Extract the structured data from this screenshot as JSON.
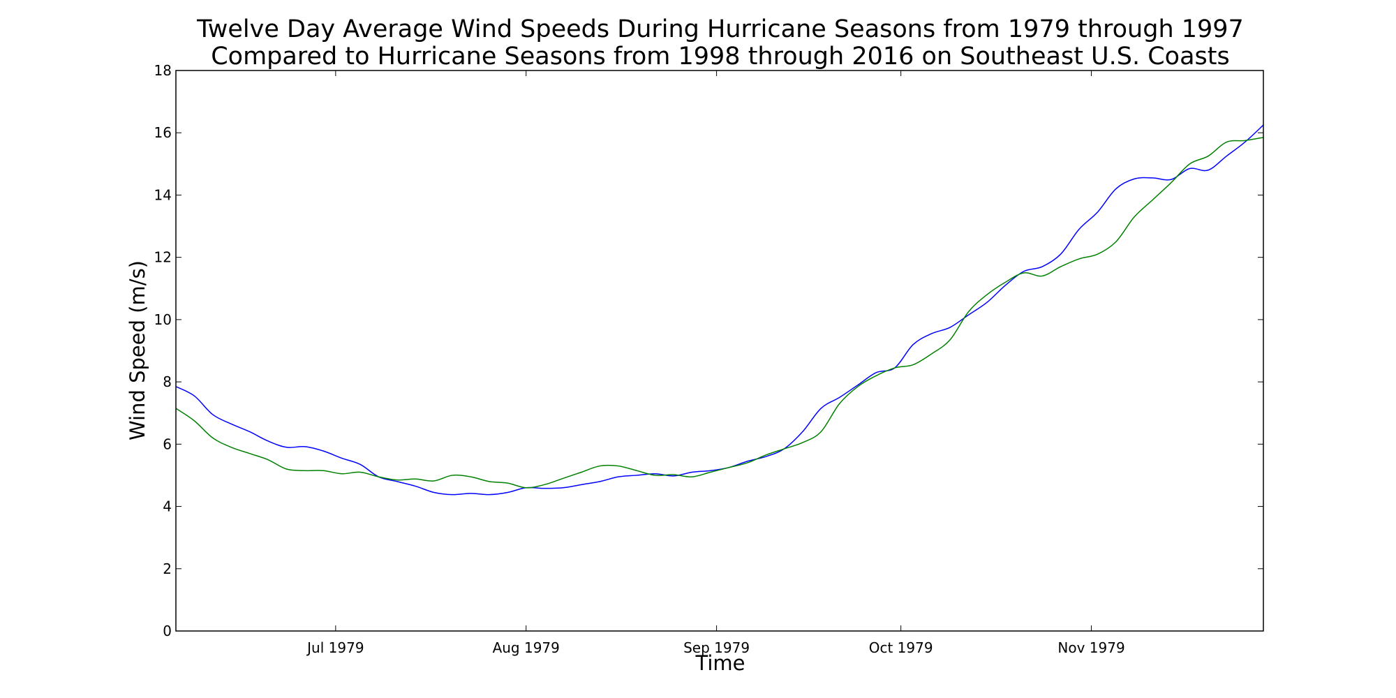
{
  "chart_data": {
    "type": "line",
    "title": "Twelve Day Average Wind Speeds During Hurricane Seasons from 1979 through 1997",
    "subtitle": "Compared to Hurricane Seasons from 1998 through 2016 on Southeast U.S. Coasts",
    "xlabel": "Time",
    "ylabel": "Wind Speed (m/s)",
    "xlim": [
      "1979-06-05",
      "1979-11-29"
    ],
    "ylim": [
      0,
      18
    ],
    "y_ticks": [
      0,
      2,
      4,
      6,
      8,
      10,
      12,
      14,
      16,
      18
    ],
    "x_ticks": [
      {
        "date": "1979-07-01",
        "label": "Jul 1979"
      },
      {
        "date": "1979-08-01",
        "label": "Aug 1979"
      },
      {
        "date": "1979-09-01",
        "label": "Sep 1979"
      },
      {
        "date": "1979-10-01",
        "label": "Oct 1979"
      },
      {
        "date": "1979-11-01",
        "label": "Nov 1979"
      }
    ],
    "grid": false,
    "legend": "none",
    "series": [
      {
        "color": "#0000ff",
        "points": [
          [
            "1979-06-05",
            7.85
          ],
          [
            "1979-06-08",
            7.55
          ],
          [
            "1979-06-11",
            6.95
          ],
          [
            "1979-06-14",
            6.65
          ],
          [
            "1979-06-17",
            6.4
          ],
          [
            "1979-06-20",
            6.1
          ],
          [
            "1979-06-23",
            5.9
          ],
          [
            "1979-06-26",
            5.92
          ],
          [
            "1979-06-29",
            5.78
          ],
          [
            "1979-07-02",
            5.55
          ],
          [
            "1979-07-05",
            5.35
          ],
          [
            "1979-07-08",
            4.95
          ],
          [
            "1979-07-11",
            4.8
          ],
          [
            "1979-07-14",
            4.65
          ],
          [
            "1979-07-17",
            4.45
          ],
          [
            "1979-07-20",
            4.38
          ],
          [
            "1979-07-23",
            4.42
          ],
          [
            "1979-07-26",
            4.38
          ],
          [
            "1979-07-29",
            4.45
          ],
          [
            "1979-08-01",
            4.6
          ],
          [
            "1979-08-04",
            4.58
          ],
          [
            "1979-08-07",
            4.6
          ],
          [
            "1979-08-10",
            4.7
          ],
          [
            "1979-08-13",
            4.8
          ],
          [
            "1979-08-16",
            4.95
          ],
          [
            "1979-08-19",
            5.0
          ],
          [
            "1979-08-22",
            5.05
          ],
          [
            "1979-08-25",
            4.98
          ],
          [
            "1979-08-28",
            5.1
          ],
          [
            "1979-08-31",
            5.15
          ],
          [
            "1979-09-03",
            5.25
          ],
          [
            "1979-09-06",
            5.45
          ],
          [
            "1979-09-09",
            5.6
          ],
          [
            "1979-09-12",
            5.85
          ],
          [
            "1979-09-15",
            6.4
          ],
          [
            "1979-09-18",
            7.15
          ],
          [
            "1979-09-21",
            7.5
          ],
          [
            "1979-09-24",
            7.9
          ],
          [
            "1979-09-27",
            8.3
          ],
          [
            "1979-09-30",
            8.45
          ],
          [
            "1979-10-03",
            9.2
          ],
          [
            "1979-10-06",
            9.55
          ],
          [
            "1979-10-09",
            9.75
          ],
          [
            "1979-10-12",
            10.15
          ],
          [
            "1979-10-15",
            10.55
          ],
          [
            "1979-10-18",
            11.1
          ],
          [
            "1979-10-21",
            11.55
          ],
          [
            "1979-10-24",
            11.7
          ],
          [
            "1979-10-27",
            12.1
          ],
          [
            "1979-10-30",
            12.9
          ],
          [
            "1979-11-02",
            13.45
          ],
          [
            "1979-11-05",
            14.2
          ],
          [
            "1979-11-08",
            14.52
          ],
          [
            "1979-11-11",
            14.55
          ],
          [
            "1979-11-14",
            14.5
          ],
          [
            "1979-11-17",
            14.85
          ],
          [
            "1979-11-20",
            14.8
          ],
          [
            "1979-11-23",
            15.25
          ],
          [
            "1979-11-26",
            15.7
          ],
          [
            "1979-11-29",
            16.25
          ]
        ]
      },
      {
        "color": "#008000",
        "points": [
          [
            "1979-06-05",
            7.15
          ],
          [
            "1979-06-08",
            6.75
          ],
          [
            "1979-06-11",
            6.2
          ],
          [
            "1979-06-14",
            5.9
          ],
          [
            "1979-06-17",
            5.7
          ],
          [
            "1979-06-20",
            5.5
          ],
          [
            "1979-06-23",
            5.2
          ],
          [
            "1979-06-26",
            5.15
          ],
          [
            "1979-06-29",
            5.15
          ],
          [
            "1979-07-02",
            5.05
          ],
          [
            "1979-07-05",
            5.1
          ],
          [
            "1979-07-08",
            4.95
          ],
          [
            "1979-07-11",
            4.85
          ],
          [
            "1979-07-14",
            4.88
          ],
          [
            "1979-07-17",
            4.82
          ],
          [
            "1979-07-20",
            5.0
          ],
          [
            "1979-07-23",
            4.95
          ],
          [
            "1979-07-26",
            4.8
          ],
          [
            "1979-07-29",
            4.75
          ],
          [
            "1979-08-01",
            4.6
          ],
          [
            "1979-08-04",
            4.7
          ],
          [
            "1979-08-07",
            4.9
          ],
          [
            "1979-08-10",
            5.1
          ],
          [
            "1979-08-13",
            5.3
          ],
          [
            "1979-08-16",
            5.3
          ],
          [
            "1979-08-19",
            5.15
          ],
          [
            "1979-08-22",
            5.0
          ],
          [
            "1979-08-25",
            5.02
          ],
          [
            "1979-08-28",
            4.95
          ],
          [
            "1979-08-31",
            5.1
          ],
          [
            "1979-09-03",
            5.25
          ],
          [
            "1979-09-06",
            5.4
          ],
          [
            "1979-09-09",
            5.65
          ],
          [
            "1979-09-12",
            5.85
          ],
          [
            "1979-09-15",
            6.05
          ],
          [
            "1979-09-18",
            6.4
          ],
          [
            "1979-09-21",
            7.3
          ],
          [
            "1979-09-24",
            7.85
          ],
          [
            "1979-09-27",
            8.2
          ],
          [
            "1979-09-30",
            8.45
          ],
          [
            "1979-10-03",
            8.55
          ],
          [
            "1979-10-06",
            8.9
          ],
          [
            "1979-10-09",
            9.35
          ],
          [
            "1979-10-12",
            10.25
          ],
          [
            "1979-10-15",
            10.8
          ],
          [
            "1979-10-18",
            11.2
          ],
          [
            "1979-10-21",
            11.5
          ],
          [
            "1979-10-24",
            11.4
          ],
          [
            "1979-10-27",
            11.7
          ],
          [
            "1979-10-30",
            11.95
          ],
          [
            "1979-11-02",
            12.1
          ],
          [
            "1979-11-05",
            12.5
          ],
          [
            "1979-11-08",
            13.3
          ],
          [
            "1979-11-11",
            13.85
          ],
          [
            "1979-11-14",
            14.4
          ],
          [
            "1979-11-17",
            15.0
          ],
          [
            "1979-11-20",
            15.25
          ],
          [
            "1979-11-23",
            15.7
          ],
          [
            "1979-11-26",
            15.75
          ],
          [
            "1979-11-29",
            15.85
          ]
        ]
      }
    ]
  }
}
